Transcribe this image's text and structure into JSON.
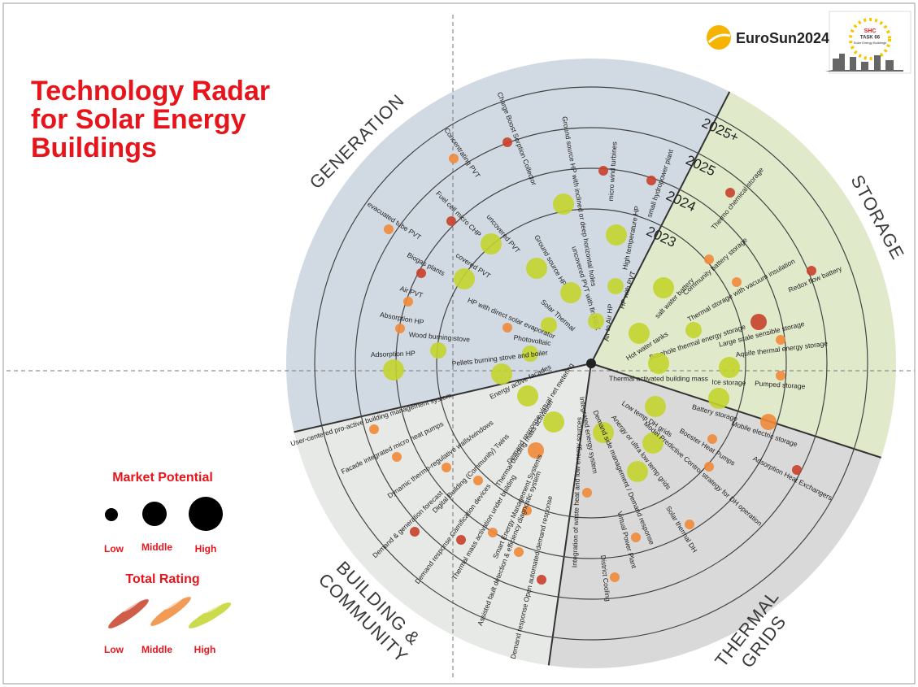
{
  "header": {
    "title": "Technology Radar for Solar Energy Buildings",
    "logo": {
      "brand": "EuroSun2024",
      "badge": [
        "SHC",
        "TASK 66",
        "Solar Energy Buildings"
      ]
    }
  },
  "radar": {
    "rings": [
      "2023",
      "2024",
      "2025",
      "2025+"
    ],
    "sectors": [
      {
        "name": [
          "GENERATION"
        ],
        "technologies": [
          {
            "label": "Charge Boost Sorption Collector",
            "potential": "Low",
            "rating": "Low"
          },
          {
            "label": "Concentrating PVT",
            "potential": "Low",
            "rating": "Middle"
          },
          {
            "label": "Fuel cell micro CHP",
            "potential": "Low",
            "rating": "Low"
          },
          {
            "label": "uncovered PVT",
            "potential": "High",
            "rating": "High"
          },
          {
            "label": "evacuated tube PVT",
            "potential": "Low",
            "rating": "Middle"
          },
          {
            "label": "covered PVT",
            "potential": "High",
            "rating": "High"
          },
          {
            "label": "Biogas plants",
            "potential": "Low",
            "rating": "Low"
          },
          {
            "label": "Air PVT",
            "potential": "Low",
            "rating": "Middle"
          },
          {
            "label": "Absorption HP",
            "potential": "Low",
            "rating": "Middle"
          },
          {
            "label": "Wood burning stove",
            "potential": "Middle",
            "rating": "High"
          },
          {
            "label": "Adsorption HP",
            "potential": "High",
            "rating": "High"
          },
          {
            "label": "Ground source HP",
            "potential": "High",
            "rating": "High"
          },
          {
            "label": "Ground source HP with inclined or deep horizontal holes",
            "potential": "High",
            "rating": "High"
          },
          {
            "label": "uncovered PVT with fin HEX",
            "potential": "High",
            "rating": "High"
          },
          {
            "label": "Solar Thermal",
            "potential": "Middle",
            "rating": "High"
          },
          {
            "label": "HP with direct solar evaporator",
            "potential": "Low",
            "rating": "Middle"
          },
          {
            "label": "Photovoltaic",
            "potential": "Middle",
            "rating": "High"
          },
          {
            "label": "Pellets burning stove and boiler",
            "potential": "High",
            "rating": "High"
          },
          {
            "label": "Air to Air HP",
            "potential": "Middle",
            "rating": "High"
          },
          {
            "label": "HP with PVT",
            "potential": "Middle",
            "rating": "High"
          },
          {
            "label": "High temperature HP",
            "potential": "High",
            "rating": "High"
          },
          {
            "label": "micro wind turbines",
            "potential": "Low",
            "rating": "Low"
          },
          {
            "label": "small hydropower plant",
            "potential": "Low",
            "rating": "Low"
          }
        ]
      },
      {
        "name": [
          "STORAGE"
        ],
        "technologies": [
          {
            "label": "Thermo chemical storage",
            "potential": "Low",
            "rating": "Low"
          },
          {
            "label": "Community battery storage",
            "potential": "Low",
            "rating": "Middle"
          },
          {
            "label": "Redox flow battery",
            "potential": "Low",
            "rating": "Low"
          },
          {
            "label": "Thermal storage with vacuum insulation",
            "potential": "Low",
            "rating": "Middle"
          },
          {
            "label": "salt water battery",
            "potential": "High",
            "rating": "High"
          },
          {
            "label": "Large scale sensible storage",
            "potential": "Middle",
            "rating": "Low"
          },
          {
            "label": "Borehole thermal energy storage",
            "potential": "Middle",
            "rating": "High"
          },
          {
            "label": "Hot water tanks",
            "potential": "High",
            "rating": "High"
          },
          {
            "label": "Aquife thermal energy storage",
            "potential": "Low",
            "rating": "Middle"
          },
          {
            "label": "Thermal activated building mass",
            "potential": "High",
            "rating": "High"
          },
          {
            "label": "Ice storage",
            "potential": "High",
            "rating": "High"
          },
          {
            "label": "Pumped storage",
            "potential": "Low",
            "rating": "Middle"
          },
          {
            "label": "Battery storage",
            "potential": "High",
            "rating": "High"
          },
          {
            "label": "Mobile electric storage",
            "potential": "Middle",
            "rating": "Middle"
          }
        ]
      },
      {
        "name": [
          "THERMAL",
          "GRIDS"
        ],
        "technologies": [
          {
            "label": "Low temp DH grids",
            "potential": "High",
            "rating": "High"
          },
          {
            "label": "Integrated energy system",
            "potential": "High",
            "rating": "High"
          },
          {
            "label": "Booster Heat Pumps",
            "potential": "Low",
            "rating": "Middle"
          },
          {
            "label": "Anergy or ultra low temp grids",
            "potential": "High",
            "rating": "High"
          },
          {
            "label": "Model Predictive Control strategy for DH operation",
            "potential": "Low",
            "rating": "Middle"
          },
          {
            "label": "Adsorption Heat Exchangers",
            "potential": "Low",
            "rating": "Low"
          },
          {
            "label": "Demand side management / Demand response",
            "potential": "High",
            "rating": "High"
          },
          {
            "label": "Integration of waste heat and low energy sources",
            "potential": "Low",
            "rating": "Middle"
          },
          {
            "label": "Solar thermal DH",
            "potential": "Low",
            "rating": "Middle"
          },
          {
            "label": "Virtual Power Plant",
            "potential": "Low",
            "rating": "Middle"
          },
          {
            "label": "District Cooling",
            "potential": "Low",
            "rating": "Middle"
          }
        ]
      },
      {
        "name": [
          "BUILDING &",
          "COMMUNITY"
        ],
        "technologies": [
          {
            "label": "Energy active facades",
            "potential": "High",
            "rating": "High"
          },
          {
            "label": "Demand response-virtual net metering",
            "potential": "High",
            "rating": "High"
          },
          {
            "label": "Thermal building mass activation",
            "potential": "Middle",
            "rating": "Middle"
          },
          {
            "label": "User-centered pro-active building management system",
            "potential": "Low",
            "rating": "Middle"
          },
          {
            "label": "Facade integrated micro heat pumps",
            "potential": "Low",
            "rating": "Middle"
          },
          {
            "label": "Dynamic thermo-regulative walls/windows",
            "potential": "Low",
            "rating": "Middle"
          },
          {
            "label": "Digital Building (Community) Twins",
            "potential": "Low",
            "rating": "Middle"
          },
          {
            "label": "Smart Energy Management Systems",
            "potential": "Low",
            "rating": "Middle"
          },
          {
            "label": "Demand & generation forecast",
            "potential": "Low",
            "rating": "Low"
          },
          {
            "label": "Demand response Gamification devices",
            "potential": "Low",
            "rating": "Low"
          },
          {
            "label": "Thermal mass activation under building",
            "potential": "Low",
            "rating": "Middle"
          },
          {
            "label": "Assisted fault detection & efficiency diagnostic system",
            "potential": "Low",
            "rating": "Middle"
          },
          {
            "label": "Demand response Open automated demand response",
            "potential": "Low",
            "rating": "Low"
          }
        ]
      }
    ]
  },
  "legend": {
    "market_potential": {
      "title": "Market Potential",
      "levels": [
        "Low",
        "Middle",
        "High"
      ]
    },
    "total_rating": {
      "title": "Total Rating",
      "levels": [
        "Low",
        "Middle",
        "High"
      ],
      "colors": [
        "#c8402a",
        "#ef8a3a",
        "#c3d42e"
      ]
    }
  }
}
